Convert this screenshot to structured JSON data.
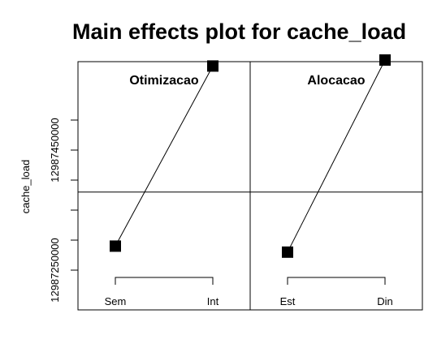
{
  "chart_data": {
    "type": "line",
    "title": "Main effects plot for cache_load",
    "ylabel": "cache_load",
    "y_tick_labels": [
      "12987250000",
      "12987450000"
    ],
    "y_ticks": [
      12987250000,
      12987450000
    ],
    "grand_mean": 12987380000,
    "panels": [
      {
        "title": "Otimizacao",
        "categories": [
          "Sem",
          "Int"
        ],
        "values": [
          12987290000,
          12987590000
        ]
      },
      {
        "title": "Alocacao",
        "categories": [
          "Est",
          "Din"
        ],
        "values": [
          12987280000,
          12987600000
        ]
      }
    ]
  }
}
